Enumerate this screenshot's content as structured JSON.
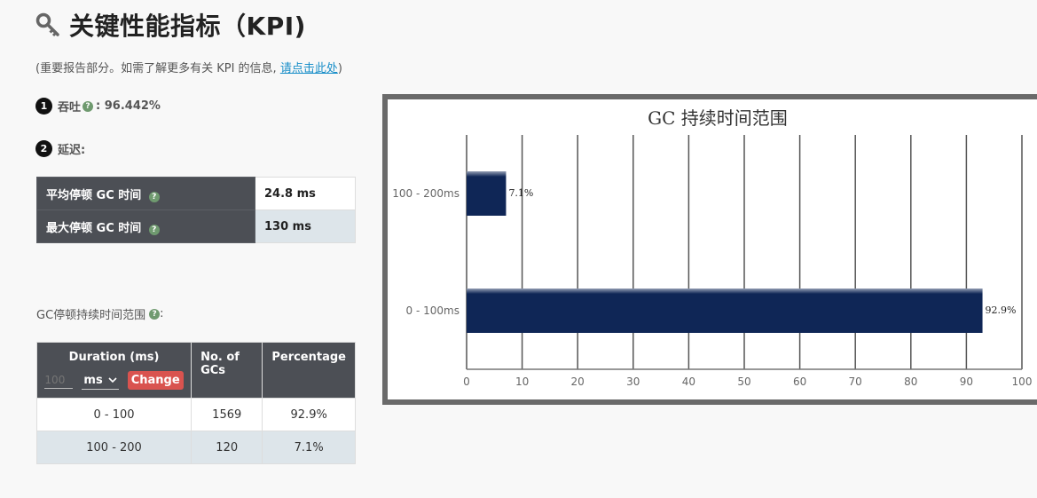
{
  "header": {
    "title": "关键性能指标（KPI)",
    "icon": "key-icon"
  },
  "subtitle": {
    "prefix": "(重要报告部分。如需了解更多有关 KPI 的信息, ",
    "link": "请点击此处",
    "suffix": ")"
  },
  "throughput": {
    "badge": "1",
    "label": "吞吐",
    "help": "?",
    "value": ": 96.442%"
  },
  "latency": {
    "badge": "2",
    "label": "延迟:"
  },
  "latency_table": [
    {
      "label": "平均停顿 GC 时间",
      "value": "24.8 ms"
    },
    {
      "label": "最大停顿 GC 时间",
      "value": "130 ms"
    }
  ],
  "range_section": {
    "label": "GC停顿持续时间范围",
    "suffix": ":"
  },
  "duration_table": {
    "headers": [
      "Duration (ms)",
      "No. of GCs",
      "Percentage"
    ],
    "input_placeholder": "100",
    "unit": "ms",
    "change_label": "Change",
    "rows": [
      [
        "0 - 100",
        "1569",
        "92.9%"
      ],
      [
        "100 - 200",
        "120",
        "7.1%"
      ]
    ]
  },
  "chart_data": {
    "type": "bar",
    "orientation": "horizontal",
    "title": "GC 持续时间范围",
    "categories": [
      "100 - 200ms",
      "0 - 100ms"
    ],
    "values": [
      7.1,
      92.9
    ],
    "data_labels": [
      "7.1%",
      "92.9%"
    ],
    "xlim": [
      0,
      100
    ],
    "xticks": [
      0,
      10,
      20,
      30,
      40,
      50,
      60,
      70,
      80,
      90,
      100
    ],
    "grid": true,
    "bar_color": "#0f2656"
  }
}
